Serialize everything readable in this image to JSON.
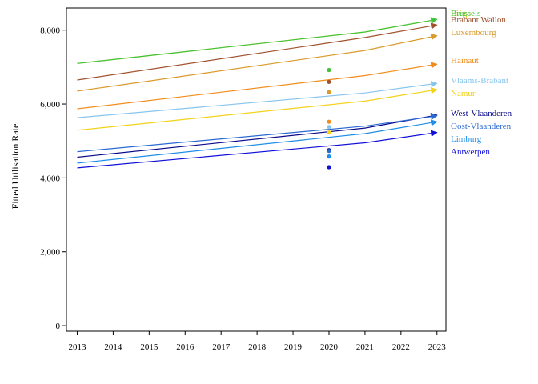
{
  "chart_data": {
    "type": "line",
    "title": "",
    "xlabel": "",
    "ylabel": "Fitted Utilisation Rate",
    "x": [
      2013,
      2014,
      2015,
      2016,
      2017,
      2018,
      2019,
      2020,
      2021,
      2022,
      2023
    ],
    "xlim": [
      2012.7,
      2023.25
    ],
    "ylim": [
      -150,
      8600
    ],
    "yticks": [
      0,
      2000,
      4000,
      6000,
      8000
    ],
    "ytick_labels": [
      "0",
      "2,000",
      "4,000",
      "6,000",
      "8,000"
    ],
    "grid": false,
    "legend": "right-end labels",
    "series": [
      {
        "name": "Liège",
        "color": "#e6c200",
        "x": [
          2013,
          2021,
          2023
        ],
        "values": [
          7100,
          7950,
          8290
        ],
        "point_2020": 6920
      },
      {
        "name": "Brussels",
        "color": "#3ec43e",
        "x": [
          2013,
          2021,
          2023
        ],
        "values": [
          7100,
          7950,
          8290
        ],
        "point_2020": 6920
      },
      {
        "name": "Brabant Wallon",
        "color": "#a0522d",
        "x": [
          2013,
          2021,
          2023
        ],
        "values": [
          6650,
          7800,
          8140
        ],
        "point_2020": 6600
      },
      {
        "name": "Luxembourg",
        "color": "#d99a2b",
        "x": [
          2013,
          2021,
          2023
        ],
        "values": [
          6350,
          7450,
          7850
        ],
        "point_2020": 6320
      },
      {
        "name": "Hainaut",
        "color": "#f28c1a",
        "x": [
          2013,
          2021,
          2023
        ],
        "values": [
          5870,
          6770,
          7080
        ],
        "point_2020": 5520
      },
      {
        "name": "Vlaams-Brabant",
        "color": "#87c5ee",
        "x": [
          2013,
          2021,
          2023
        ],
        "values": [
          5630,
          6300,
          6560
        ],
        "point_2020": 5380
      },
      {
        "name": "Namur",
        "color": "#f2d21a",
        "x": [
          2013,
          2021,
          2023
        ],
        "values": [
          5290,
          6080,
          6390
        ],
        "point_2020": 5230
      },
      {
        "name": "West-Vlaanderen",
        "color": "#0a0a8a",
        "x": [
          2013,
          2021,
          2023
        ],
        "values": [
          4560,
          5350,
          5700
        ],
        "point_2020": 4750
      },
      {
        "name": "Oost-Vlaanderen",
        "color": "#2a6ad2",
        "x": [
          2013,
          2021,
          2023
        ],
        "values": [
          4710,
          5400,
          5680
        ],
        "point_2020": 4730
      },
      {
        "name": "Limburg",
        "color": "#1f8ee8",
        "x": [
          2013,
          2021,
          2023
        ],
        "values": [
          4400,
          5200,
          5520
        ],
        "point_2020": 4580
      },
      {
        "name": "Antwerpen",
        "color": "#1010d8",
        "x": [
          2013,
          2021,
          2023
        ],
        "values": [
          4270,
          4950,
          5230
        ],
        "point_2020": 4290
      }
    ]
  }
}
